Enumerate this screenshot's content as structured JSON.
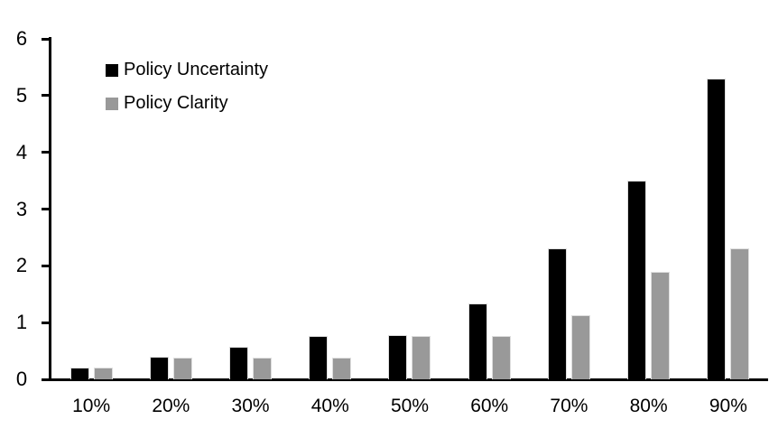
{
  "chart_data": {
    "type": "bar",
    "title": "",
    "xlabel": "",
    "ylabel": "",
    "categories": [
      "10%",
      "20%",
      "30%",
      "40%",
      "50%",
      "60%",
      "70%",
      "80%",
      "90%"
    ],
    "series": [
      {
        "name": "Policy Uncertainty",
        "color": "#000000",
        "values": [
          0.2,
          0.4,
          0.57,
          0.77,
          0.78,
          1.33,
          2.3,
          3.5,
          5.3
        ]
      },
      {
        "name": "Policy Clarity",
        "color": "#999999",
        "values": [
          0.2,
          0.38,
          0.38,
          0.38,
          0.77,
          0.77,
          1.13,
          1.9,
          2.3
        ]
      }
    ],
    "ylim": [
      0,
      6
    ],
    "yticks": [
      0,
      1,
      2,
      3,
      4,
      5,
      6
    ],
    "grid": false,
    "legend_position": "top-left",
    "axis_color": "#000000",
    "bar_border_color": "#dedede"
  }
}
